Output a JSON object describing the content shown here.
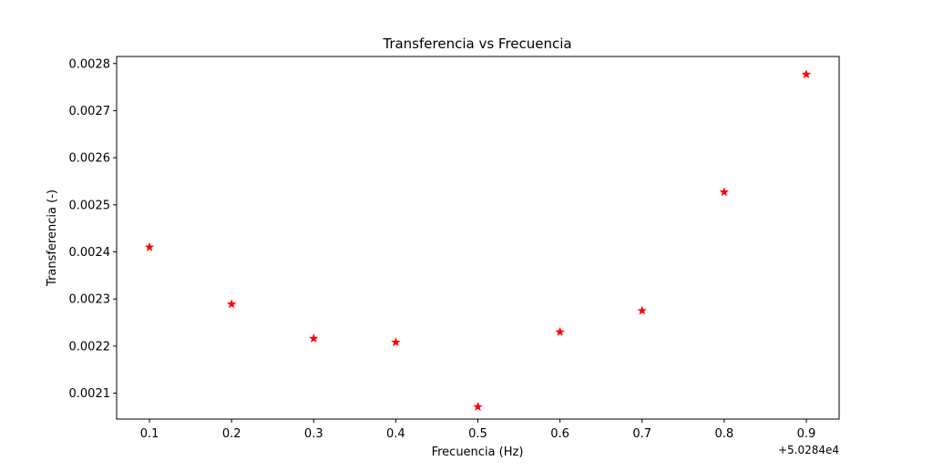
{
  "chart_data": {
    "type": "scatter",
    "title": "Transferencia vs Frecuencia",
    "xlabel": "Frecuencia (Hz)",
    "ylabel": "Transferencia (-)",
    "x_offset_label": "+5.0284e4",
    "xlim": [
      0.06,
      0.94
    ],
    "ylim": [
      0.002045,
      0.002815
    ],
    "xticks": [
      0.1,
      0.2,
      0.3,
      0.4,
      0.5,
      0.6,
      0.7,
      0.8,
      0.9
    ],
    "xtick_labels": [
      "0.1",
      "0.2",
      "0.3",
      "0.4",
      "0.5",
      "0.6",
      "0.7",
      "0.8",
      "0.9"
    ],
    "yticks": [
      0.0021,
      0.0022,
      0.0023,
      0.0024,
      0.0025,
      0.0026,
      0.0027,
      0.0028
    ],
    "ytick_labels": [
      "0.0021",
      "0.0022",
      "0.0023",
      "0.0024",
      "0.0025",
      "0.0026",
      "0.0027",
      "0.0028"
    ],
    "marker": "star",
    "marker_color": "#ff0000",
    "grid": false,
    "legend": "none",
    "series": [
      {
        "x": [
          0.1,
          0.2,
          0.3,
          0.4,
          0.5,
          0.6,
          0.7,
          0.8,
          0.9
        ],
        "y": [
          0.00241,
          0.002289,
          0.002216,
          0.002208,
          0.002071,
          0.00223,
          0.002275,
          0.002527,
          0.002777
        ]
      }
    ]
  }
}
